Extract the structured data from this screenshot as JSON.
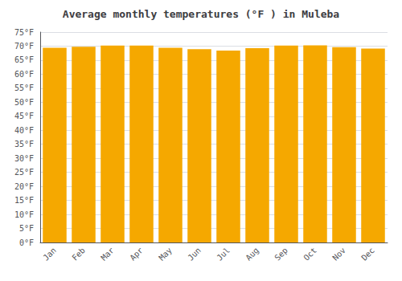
{
  "chart_data": {
    "type": "bar",
    "title": "Average monthly temperatures (°F ) in Muleba",
    "categories": [
      "Jan",
      "Feb",
      "Mar",
      "Apr",
      "May",
      "Jun",
      "Jul",
      "Aug",
      "Sep",
      "Oct",
      "Nov",
      "Dec"
    ],
    "values": [
      69.4,
      69.8,
      70.2,
      70.2,
      69.4,
      68.9,
      68.4,
      69.3,
      70.2,
      70.3,
      69.6,
      69.1
    ],
    "color": "#F5A800",
    "ylim": [
      0,
      75
    ],
    "yticks": [
      {
        "value": 0,
        "label": "0°F"
      },
      {
        "value": 5,
        "label": "5°F"
      },
      {
        "value": 10,
        "label": "10°F"
      },
      {
        "value": 15,
        "label": "15°F"
      },
      {
        "value": 20,
        "label": "20°F"
      },
      {
        "value": 25,
        "label": "25°F"
      },
      {
        "value": 30,
        "label": "30°F"
      },
      {
        "value": 35,
        "label": "35°F"
      },
      {
        "value": 40,
        "label": "40°F"
      },
      {
        "value": 45,
        "label": "45°F"
      },
      {
        "value": 50,
        "label": "50°F"
      },
      {
        "value": 55,
        "label": "55°F"
      },
      {
        "value": 60,
        "label": "60°F"
      },
      {
        "value": 65,
        "label": "65°F"
      },
      {
        "value": 70,
        "label": "70°F"
      },
      {
        "value": 75,
        "label": "75°F"
      }
    ],
    "grid": true
  }
}
